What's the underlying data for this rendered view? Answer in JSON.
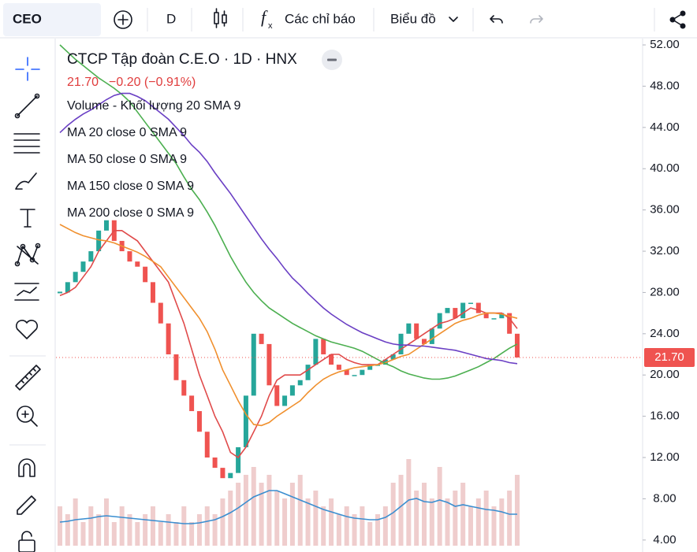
{
  "toolbar": {
    "symbol": "CEO",
    "interval": "D",
    "indicators": "Các chỉ báo",
    "layout": "Biểu đồ"
  },
  "chart_data": {
    "type": "candlestick",
    "title": "CTCP Tập đoàn C.E.O · 1D · HNX",
    "last_price": {
      "value": 21.7,
      "label": "21.70"
    },
    "change": "−0.20 (−0.91%)",
    "up_color": "#26a69a",
    "down_color": "#ef5350",
    "close": [
      28,
      29,
      30,
      31,
      32,
      34,
      35,
      33,
      32,
      31,
      30.5,
      29,
      27,
      25,
      22,
      19.5,
      18,
      16.5,
      14.5,
      12,
      11,
      10,
      10.5,
      13,
      18,
      24,
      23,
      19,
      17,
      18,
      19,
      19.5,
      21,
      23.5,
      22,
      21,
      20.5,
      20,
      20,
      20.5,
      21,
      21,
      21.5,
      22,
      24,
      25,
      23.5,
      23,
      24.5,
      26,
      26.5,
      25.5,
      27,
      27,
      26,
      25.5,
      25.5,
      26,
      24,
      21.7
    ],
    "series": [
      {
        "name": "MA 20 close 0 SMA 9",
        "color": "#e04a4a",
        "values": [
          27.7,
          28,
          28.5,
          29.5,
          30.5,
          32,
          33,
          34,
          34,
          33.5,
          33,
          32,
          31,
          30,
          29,
          27,
          25,
          22.5,
          20,
          18,
          16,
          14.5,
          12.5,
          12,
          13,
          14.5,
          16,
          18,
          19.5,
          20,
          20,
          20,
          20.5,
          21,
          21.5,
          22,
          22,
          21.5,
          21.2,
          21,
          21,
          21,
          21.5,
          22,
          22.5,
          23,
          23.5,
          24,
          24.5,
          25,
          25.2,
          25.5,
          26,
          26.5,
          26.3,
          26,
          26,
          26,
          25.5,
          24.5
        ]
      },
      {
        "name": "MA 50 close 0 SMA 9",
        "color": "#f0902e",
        "values": [
          34.6,
          34.2,
          33.8,
          33.5,
          33.3,
          33.1,
          33,
          32.8,
          32.5,
          32.2,
          31.9,
          31.5,
          31,
          30.5,
          29.5,
          28.5,
          27.5,
          26.5,
          25.5,
          24.2,
          22.5,
          20.5,
          19,
          17.5,
          16.2,
          15.2,
          15.1,
          15.4,
          16,
          16.5,
          17,
          17.5,
          18.3,
          19,
          19.6,
          20,
          20.3,
          20.5,
          20.7,
          20.8,
          20.9,
          21,
          21.2,
          21.5,
          21.8,
          22,
          22.5,
          23,
          23.5,
          24,
          24.5,
          25,
          25.3,
          25.5,
          25.8,
          26,
          26,
          25.9,
          25.7,
          25.5
        ]
      },
      {
        "name": "MA 150 close 0 SMA 9",
        "color": "#4caf50",
        "values": [
          52,
          51.3,
          50.6,
          50,
          49.4,
          48.8,
          48.3,
          47.8,
          47.2,
          46.5,
          45.5,
          44.5,
          43.5,
          42.5,
          41.5,
          40.5,
          39.2,
          38,
          37,
          35.8,
          34.5,
          33,
          31.5,
          30.2,
          29,
          28,
          27.2,
          26.5,
          26,
          25.5,
          25,
          24.6,
          24.2,
          23.8,
          23.5,
          23.2,
          23,
          22.8,
          22.6,
          22.3,
          21.9,
          21.5,
          21.1,
          20.8,
          20.4,
          20.1,
          19.9,
          19.7,
          19.6,
          19.6,
          19.7,
          19.9,
          20.2,
          20.5,
          20.8,
          21.2,
          21.6,
          22.1,
          22.6,
          23
        ]
      },
      {
        "name": "MA 200 close 0 SMA 9",
        "color": "#6a3fc4",
        "values": [
          43.5,
          44.2,
          44.8,
          45.3,
          45.7,
          46.2,
          46.7,
          47.1,
          47.3,
          47.3,
          47,
          46.6,
          46,
          45.4,
          44.8,
          44,
          43.2,
          42.3,
          41.6,
          40.7,
          39.6,
          38.6,
          37.6,
          36.5,
          35.4,
          34.3,
          33.2,
          32.2,
          31.3,
          30.3,
          29.4,
          28.7,
          27.9,
          27.2,
          26.5,
          25.9,
          25.4,
          24.9,
          24.5,
          24.1,
          23.8,
          23.5,
          23.2,
          23,
          22.9,
          22.9,
          22.8,
          22.8,
          22.7,
          22.6,
          22.5,
          22.4,
          22.2,
          22,
          21.8,
          21.6,
          21.5,
          21.4,
          21.2,
          21.1
        ]
      }
    ],
    "volume": {
      "name": "Volume - Khối lượng 20 SMA 9",
      "color": "#e8b8b8",
      "sma_color": "#3a8ed0",
      "values": [
        0.5,
        0.4,
        0.6,
        0.3,
        0.5,
        0.4,
        0.6,
        0.3,
        0.5,
        0.4,
        0.3,
        0.4,
        0.5,
        0.3,
        0.4,
        0.3,
        0.5,
        0.3,
        0.4,
        0.5,
        0.4,
        0.6,
        0.7,
        0.8,
        0.9,
        1.0,
        0.8,
        0.9,
        0.7,
        0.6,
        0.8,
        0.9,
        0.6,
        0.7,
        0.5,
        0.6,
        0.4,
        0.5,
        0.4,
        0.5,
        0.3,
        0.4,
        0.5,
        0.8,
        0.9,
        1.1,
        0.7,
        0.8,
        0.6,
        1.0,
        0.6,
        0.7,
        0.8,
        0.5,
        0.6,
        0.7,
        0.5,
        0.6,
        0.7,
        0.9
      ],
      "sma_values": [
        0.3,
        0.31,
        0.33,
        0.34,
        0.35,
        0.37,
        0.38,
        0.37,
        0.36,
        0.35,
        0.34,
        0.33,
        0.32,
        0.31,
        0.3,
        0.29,
        0.28,
        0.28,
        0.29,
        0.31,
        0.33,
        0.37,
        0.42,
        0.48,
        0.55,
        0.62,
        0.66,
        0.7,
        0.7,
        0.66,
        0.62,
        0.58,
        0.54,
        0.5,
        0.46,
        0.43,
        0.4,
        0.37,
        0.35,
        0.34,
        0.33,
        0.33,
        0.36,
        0.42,
        0.5,
        0.58,
        0.6,
        0.56,
        0.55,
        0.58,
        0.55,
        0.5,
        0.52,
        0.5,
        0.48,
        0.46,
        0.45,
        0.43,
        0.4,
        0.4
      ]
    },
    "ylim": [
      2.84,
      52.69
    ],
    "yticks": [
      {
        "value": 4,
        "label": "4.00"
      },
      {
        "value": 8,
        "label": "8.00"
      },
      {
        "value": 12,
        "label": "12.00"
      },
      {
        "value": 16,
        "label": "16.00"
      },
      {
        "value": 20,
        "label": "20.00"
      },
      {
        "value": 24,
        "label": "24.00"
      },
      {
        "value": 28,
        "label": "28.00"
      },
      {
        "value": 32,
        "label": "32.00"
      },
      {
        "value": 36,
        "label": "36.00"
      },
      {
        "value": 40,
        "label": "40.00"
      },
      {
        "value": 44,
        "label": "44.00"
      },
      {
        "value": 48,
        "label": "48.00"
      },
      {
        "value": 52,
        "label": "52.00"
      }
    ],
    "grid": false
  }
}
